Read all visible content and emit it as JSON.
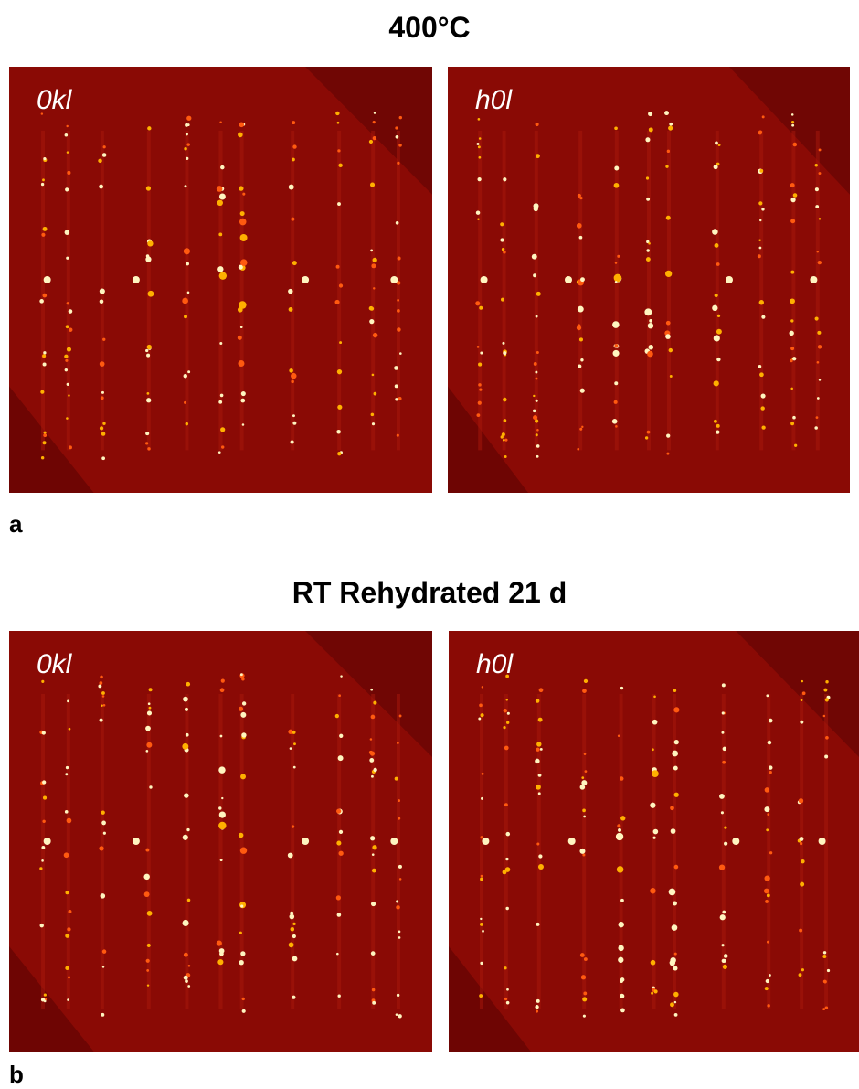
{
  "panels": [
    {
      "title": "400°C",
      "label": "a",
      "images": [
        {
          "label": "0kl"
        },
        {
          "label": "h0l"
        }
      ]
    },
    {
      "title": "RT Rehydrated 21 d",
      "label": "b",
      "images": [
        {
          "label": "0kl"
        },
        {
          "label": "h0l"
        }
      ]
    }
  ]
}
